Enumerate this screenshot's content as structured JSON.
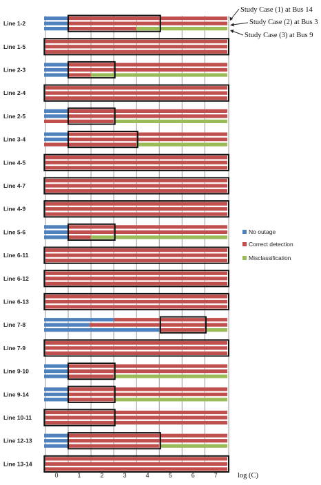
{
  "chart_data": {
    "type": "bar",
    "orientation": "horizontal",
    "xlabel": "log (C)",
    "xlim": [
      -0.06,
      8.05
    ],
    "x_ticks": [
      0,
      1,
      2,
      3,
      4,
      5,
      6,
      7
    ],
    "grid": true,
    "legend": {
      "placement": "right",
      "entries": [
        {
          "label": "No outage",
          "color": "#4f81bd"
        },
        {
          "label": "Correct detection",
          "color": "#c0504d"
        },
        {
          "label": "Misclassification",
          "color": "#9bbb59"
        }
      ]
    },
    "annotations": [
      "Study Case (1) at Bus 14",
      "Study Case (2) at Bus 3",
      "Study Case (3) at Bus 9"
    ],
    "categories": [
      "Line 1-2",
      "Line 1-5",
      "Line 2-3",
      "Line 2-4",
      "Line 2-5",
      "Line 3-4",
      "Line 4-5",
      "Line 4-7",
      "Line 4-9",
      "Line 5-6",
      "Line 6-11",
      "Line 6-12",
      "Line 6-13",
      "Line 7-8",
      "Line 7-9",
      "Line 9-10",
      "Line 9-14",
      "Line 10-11",
      "Line 12-13",
      "Line 13-14"
    ],
    "rows": [
      {
        "bars": [
          [
            [
              "no",
              1
            ],
            [
              "cd",
              7.05
            ]
          ],
          [
            [
              "no",
              1
            ],
            [
              "cd",
              7.05
            ]
          ],
          [
            [
              "no",
              1
            ],
            [
              "cd",
              3.05
            ],
            [
              "mc",
              4
            ]
          ]
        ],
        "box": [
          1,
          5.05
        ]
      },
      {
        "bars": [
          [
            [
              "cd",
              8.05
            ]
          ],
          [
            [
              "cd",
              8.05
            ]
          ],
          [
            [
              "cd",
              8.05
            ]
          ]
        ],
        "box": [
          -0.05,
          8.05
        ]
      },
      {
        "bars": [
          [
            [
              "no",
              1
            ],
            [
              "cd",
              7.05
            ]
          ],
          [
            [
              "no",
              1
            ],
            [
              "cd",
              7.05
            ]
          ],
          [
            [
              "no",
              1
            ],
            [
              "cd",
              1.05
            ],
            [
              "mc",
              6
            ]
          ]
        ],
        "box": [
          1,
          3.05
        ]
      },
      {
        "bars": [
          [
            [
              "cd",
              8.05
            ]
          ],
          [
            [
              "cd",
              8.05
            ]
          ],
          [
            [
              "cd",
              8.05
            ]
          ]
        ],
        "box": [
          -0.05,
          8.05
        ]
      },
      {
        "bars": [
          [
            [
              "no",
              1
            ],
            [
              "cd",
              7.05
            ]
          ],
          [
            [
              "no",
              1
            ],
            [
              "cd",
              7.05
            ]
          ],
          [
            [
              "cd",
              3.05
            ],
            [
              "mc",
              5
            ]
          ]
        ],
        "box": [
          1,
          3.05
        ]
      },
      {
        "bars": [
          [
            [
              "no",
              1
            ],
            [
              "cd",
              7.05
            ]
          ],
          [
            [
              "no",
              1
            ],
            [
              "cd",
              7.05
            ]
          ],
          [
            [
              "cd",
              4.05
            ],
            [
              "mc",
              4
            ]
          ]
        ],
        "box": [
          1,
          4.05
        ]
      },
      {
        "bars": [
          [
            [
              "cd",
              8.05
            ]
          ],
          [
            [
              "cd",
              8.05
            ]
          ],
          [
            [
              "cd",
              8.05
            ]
          ]
        ],
        "box": [
          -0.05,
          8.05
        ]
      },
      {
        "bars": [
          [
            [
              "cd",
              8.05
            ]
          ],
          [
            [
              "cd",
              8.05
            ]
          ],
          [
            [
              "cd",
              8.05
            ]
          ]
        ],
        "box": [
          -0.05,
          8.05
        ]
      },
      {
        "bars": [
          [
            [
              "cd",
              8.05
            ]
          ],
          [
            [
              "cd",
              8.05
            ]
          ],
          [
            [
              "cd",
              8.05
            ]
          ]
        ],
        "box": [
          -0.05,
          8.05
        ]
      },
      {
        "bars": [
          [
            [
              "no",
              1
            ],
            [
              "cd",
              7.05
            ]
          ],
          [
            [
              "no",
              1
            ],
            [
              "cd",
              7.05
            ]
          ],
          [
            [
              "no",
              1
            ],
            [
              "cd",
              1.05
            ],
            [
              "mc",
              6
            ]
          ]
        ],
        "box": [
          1,
          3.05
        ]
      },
      {
        "bars": [
          [
            [
              "cd",
              8.05
            ]
          ],
          [
            [
              "cd",
              8.05
            ]
          ],
          [
            [
              "cd",
              8.05
            ]
          ]
        ],
        "box": [
          -0.05,
          8.05
        ]
      },
      {
        "bars": [
          [
            [
              "cd",
              8.05
            ]
          ],
          [
            [
              "cd",
              8.05
            ]
          ],
          [
            [
              "cd",
              8.05
            ]
          ]
        ],
        "box": [
          -0.05,
          8.05
        ]
      },
      {
        "bars": [
          [
            [
              "cd",
              8.05
            ]
          ],
          [
            [
              "cd",
              8.05
            ]
          ],
          [
            [
              "cd",
              8.05
            ]
          ]
        ],
        "box": [
          -0.05,
          8.05
        ]
      },
      {
        "bars": [
          [
            [
              "no",
              3.05
            ],
            [
              "cd",
              5
            ]
          ],
          [
            [
              "no",
              2
            ],
            [
              "cd",
              6.05
            ]
          ],
          [
            [
              "no",
              5.05
            ],
            [
              "cd",
              2
            ],
            [
              "mc",
              1
            ]
          ]
        ],
        "box": [
          5.05,
          7.05
        ]
      },
      {
        "bars": [
          [
            [
              "cd",
              8.05
            ]
          ],
          [
            [
              "cd",
              8.05
            ]
          ],
          [
            [
              "cd",
              8.05
            ]
          ]
        ],
        "box": [
          -0.05,
          8.05
        ]
      },
      {
        "bars": [
          [
            [
              "no",
              1
            ],
            [
              "cd",
              7.05
            ]
          ],
          [
            [
              "no",
              1
            ],
            [
              "cd",
              7.05
            ]
          ],
          [
            [
              "no",
              1
            ],
            [
              "cd",
              2.05
            ],
            [
              "mc",
              5
            ]
          ]
        ],
        "box": [
          1,
          3.05
        ]
      },
      {
        "bars": [
          [
            [
              "no",
              1
            ],
            [
              "cd",
              7.05
            ]
          ],
          [
            [
              "no",
              1
            ],
            [
              "cd",
              7.05
            ]
          ],
          [
            [
              "no",
              1
            ],
            [
              "cd",
              2.05
            ],
            [
              "mc",
              5
            ]
          ]
        ],
        "box": [
          1,
          3.05
        ]
      },
      {
        "bars": [
          [
            [
              "cd",
              8.05
            ]
          ],
          [
            [
              "cd",
              8.05
            ]
          ],
          [
            [
              "cd",
              8.05
            ]
          ]
        ],
        "box": [
          -0.05,
          3.05
        ]
      },
      {
        "bars": [
          [
            [
              "no",
              1
            ],
            [
              "cd",
              7.05
            ]
          ],
          [
            [
              "no",
              1
            ],
            [
              "cd",
              7.05
            ]
          ],
          [
            [
              "no",
              1
            ],
            [
              "cd",
              4.05
            ],
            [
              "mc",
              3
            ]
          ]
        ],
        "box": [
          1,
          5.05
        ]
      },
      {
        "bars": [
          [
            [
              "cd",
              8.05
            ]
          ],
          [
            [
              "cd",
              8.05
            ]
          ],
          [
            [
              "cd",
              8.05
            ]
          ]
        ],
        "box": [
          -0.05,
          8.05
        ]
      }
    ]
  }
}
